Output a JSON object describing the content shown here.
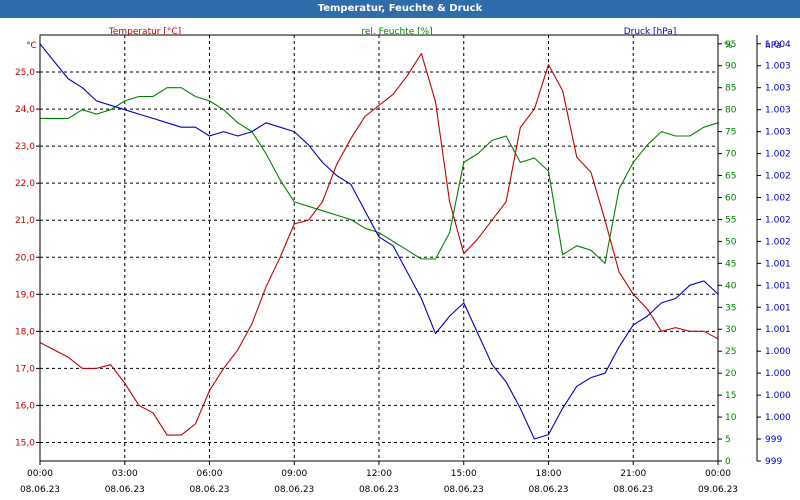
{
  "chart_data": {
    "type": "line",
    "title": "Temperatur, Feuchte & Druck",
    "x_ticks": [
      {
        "time": "00:00",
        "date": "08.06.23"
      },
      {
        "time": "03:00",
        "date": "08.06.23"
      },
      {
        "time": "06:00",
        "date": "08.06.23"
      },
      {
        "time": "09:00",
        "date": "08.06.23"
      },
      {
        "time": "12:00",
        "date": "08.06.23"
      },
      {
        "time": "15:00",
        "date": "08.06.23"
      },
      {
        "time": "18:00",
        "date": "08.06.23"
      },
      {
        "time": "21:00",
        "date": "08.06.23"
      },
      {
        "time": "00:00",
        "date": "09.06.23"
      }
    ],
    "xlim_hours": [
      0,
      24
    ],
    "grid": true,
    "axes": {
      "temperature": {
        "label": "Temperatur [°C]",
        "unit": "°C",
        "color": "#c00000",
        "ylim": [
          14.5,
          26.0
        ],
        "tick_values": [
          15.0,
          16.0,
          17.0,
          18.0,
          19.0,
          20.0,
          21.0,
          22.0,
          23.0,
          24.0,
          25.0
        ],
        "tick_labels": [
          "15,0",
          "16,0",
          "17,0",
          "18,0",
          "19,0",
          "20,0",
          "21,0",
          "22,0",
          "23,0",
          "24,0",
          "25,0"
        ]
      },
      "humidity": {
        "label": "rel. Feuchte [%]",
        "unit": "%",
        "color": "#008000",
        "ylim": [
          0,
          97
        ],
        "tick_values": [
          0,
          5,
          10,
          15,
          20,
          25,
          30,
          35,
          40,
          45,
          50,
          55,
          60,
          65,
          70,
          75,
          80,
          85,
          90,
          95
        ],
        "tick_labels": [
          "0",
          "5",
          "10",
          "15",
          "20",
          "25",
          "30",
          "35",
          "40",
          "45",
          "50",
          "55",
          "60",
          "65",
          "70",
          "75",
          "80",
          "85",
          "90",
          "95"
        ]
      },
      "pressure": {
        "label": "Druck [hPa]",
        "unit": "hPa",
        "color": "#0000c0",
        "tick_labels": [
          "999",
          "999",
          "1.000",
          "1.000",
          "1.000",
          "1.000",
          "1.001",
          "1.001",
          "1.001",
          "1.001",
          "1.002",
          "1.002",
          "1.002",
          "1.002",
          "1.002",
          "1.003",
          "1.003",
          "1.003",
          "1.003",
          "1.004"
        ]
      }
    },
    "series": [
      {
        "name": "Temperatur [°C]",
        "axis": "temperature",
        "color": "#c00000",
        "x": [
          0,
          0.5,
          1,
          1.5,
          2,
          2.5,
          3,
          3.5,
          4,
          4.5,
          5,
          5.5,
          6,
          6.5,
          7,
          7.5,
          8,
          8.5,
          9,
          9.5,
          10,
          10.5,
          11,
          11.5,
          12,
          12.5,
          13,
          13.5,
          14,
          14.5,
          15,
          15.5,
          16,
          16.5,
          17,
          17.5,
          18,
          18.5,
          19,
          19.5,
          20,
          20.5,
          21,
          21.5,
          22,
          22.5,
          23,
          23.5,
          24
        ],
        "values": [
          17.7,
          17.5,
          17.3,
          17.0,
          17.0,
          17.1,
          16.6,
          16.0,
          15.8,
          15.2,
          15.2,
          15.5,
          16.4,
          17.0,
          17.5,
          18.2,
          19.2,
          20.0,
          20.9,
          21.0,
          21.5,
          22.5,
          23.2,
          23.8,
          24.1,
          24.4,
          24.9,
          25.5,
          24.2,
          21.5,
          20.1,
          20.5,
          21.0,
          21.5,
          23.5,
          24.0,
          25.2,
          24.5,
          22.7,
          22.3,
          21.0,
          19.6,
          19.0,
          18.6,
          18.0,
          18.1,
          18.0,
          18.0,
          17.8
        ]
      },
      {
        "name": "rel. Feuchte [%]",
        "axis": "humidity",
        "color": "#008000",
        "x": [
          0,
          0.5,
          1,
          1.5,
          2,
          2.5,
          3,
          3.5,
          4,
          4.5,
          5,
          5.5,
          6,
          6.5,
          7,
          7.5,
          8,
          8.5,
          9,
          9.5,
          10,
          10.5,
          11,
          11.5,
          12,
          12.5,
          13,
          13.5,
          14,
          14.5,
          15,
          15.5,
          16,
          16.5,
          17,
          17.5,
          18,
          18.5,
          19,
          19.5,
          20,
          20.5,
          21,
          21.5,
          22,
          22.5,
          23,
          23.5,
          24
        ],
        "values": [
          78,
          78,
          78,
          80,
          79,
          80,
          82,
          83,
          83,
          85,
          85,
          83,
          82,
          80,
          77,
          75,
          70,
          64,
          59,
          58,
          57,
          56,
          55,
          53,
          52,
          50,
          48,
          46,
          46,
          52,
          68,
          70,
          73,
          74,
          68,
          69,
          66,
          47,
          49,
          48,
          45,
          62,
          68,
          72,
          75,
          74,
          74,
          76,
          77
        ]
      },
      {
        "name": "Druck [hPa]",
        "axis": "pressure",
        "color": "#0000c0",
        "x": [
          0,
          0.5,
          1,
          1.5,
          2,
          2.5,
          3,
          3.5,
          4,
          4.5,
          5,
          5.5,
          6,
          6.5,
          7,
          7.5,
          8,
          8.5,
          9,
          9.5,
          10,
          10.5,
          11,
          11.5,
          12,
          12.5,
          13,
          13.5,
          14,
          14.5,
          15,
          15.5,
          16,
          16.5,
          17,
          17.5,
          18,
          18.5,
          19,
          19.5,
          20,
          20.5,
          21,
          21.5,
          22,
          22.5,
          23,
          23.5,
          24
        ],
        "values": [
          95,
          91,
          87,
          85,
          82,
          81,
          80,
          79,
          78,
          77,
          76,
          76,
          74,
          75,
          74,
          75,
          77,
          76,
          75,
          72,
          68,
          65,
          63,
          57,
          51,
          49,
          43,
          37,
          29,
          33,
          36,
          29,
          22,
          18,
          12,
          5,
          6,
          12,
          17,
          19,
          20,
          26,
          31,
          33,
          36,
          37,
          40,
          41,
          38
        ]
      }
    ]
  }
}
